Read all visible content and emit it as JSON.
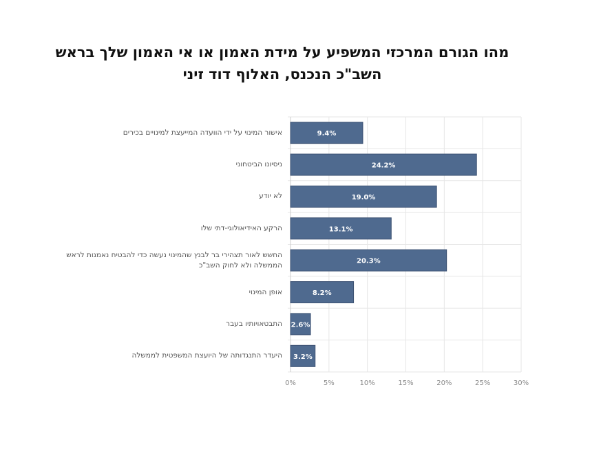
{
  "chart_data": {
    "type": "bar",
    "orientation": "horizontal",
    "title_lines": [
      "מהו הגורם המרכזי המשפיע על מידת האמון או אי האמון שלך בראש",
      "השב\"כ הנכנס, האלוף דוד זיני"
    ],
    "categories": [
      "אישור המינוי על ידי הוועדה המייעצת למינויים בכירים",
      "ניסיונו הביטחוני",
      "לא יודע",
      "הרקע האידיאולוגי-דתי שלו",
      "החשש לאור תצהירי בר לבנץ שהמינוי נעשה כדי להבטיח נאמנות לראש הממשלה ולא לחוק השב\"כ",
      "אופן המינוי",
      "התבטאויותיו בעבר",
      "היעדר התנגדותה של היועצת המשפטית לממשלה"
    ],
    "values": [
      9.4,
      24.2,
      19.0,
      13.1,
      20.3,
      8.2,
      2.6,
      3.2
    ],
    "value_labels": [
      "9.4%",
      "24.2%",
      "19.0%",
      "13.1%",
      "20.3%",
      "8.2%",
      "2.6%",
      "3.2%"
    ],
    "xticks": [
      0,
      5,
      10,
      15,
      20,
      25,
      30
    ],
    "xtick_labels": [
      "0%",
      "5%",
      "10%",
      "15%",
      "20%",
      "25%",
      "30%"
    ],
    "xlim": [
      0,
      30
    ],
    "grid": true,
    "bar_color": "#4f6a8f"
  }
}
